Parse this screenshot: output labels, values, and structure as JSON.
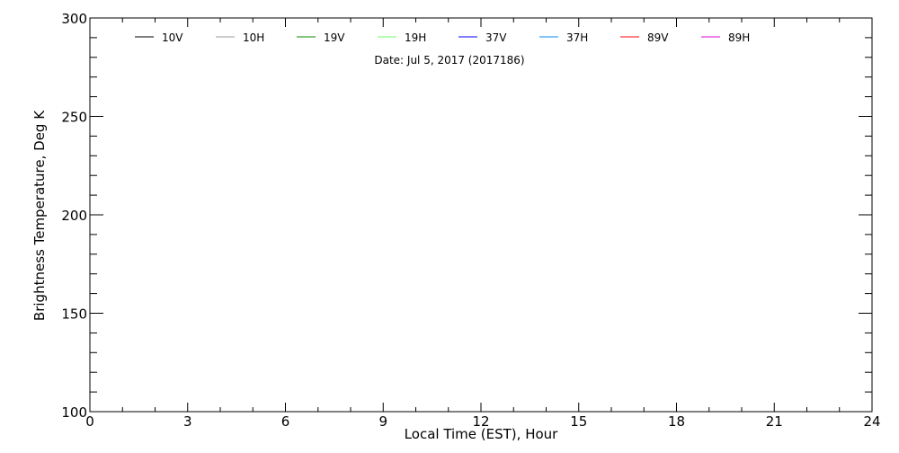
{
  "chart_data": {
    "type": "line",
    "subtitle": "Date: Jul  5, 2017 (2017186)",
    "xlabel": "Local Time (EST), Hour",
    "ylabel": "Brightness Temperature, Deg K",
    "xlim": [
      0,
      24
    ],
    "ylim": [
      100,
      300
    ],
    "x_ticks": [
      "0",
      "3",
      "6",
      "9",
      "12",
      "15",
      "18",
      "21",
      "24"
    ],
    "y_ticks": [
      "100",
      "150",
      "200",
      "250",
      "300"
    ],
    "grid": false,
    "legend_position": "top",
    "series": [
      {
        "name": "10V",
        "color": "#000000",
        "x": [],
        "y": []
      },
      {
        "name": "10H",
        "color": "#999999",
        "x": [],
        "y": []
      },
      {
        "name": "19V",
        "color": "#008800",
        "x": [],
        "y": []
      },
      {
        "name": "19H",
        "color": "#66ff66",
        "x": [],
        "y": []
      },
      {
        "name": "37V",
        "color": "#0000ff",
        "x": [],
        "y": []
      },
      {
        "name": "37H",
        "color": "#0088ff",
        "x": [],
        "y": []
      },
      {
        "name": "89V",
        "color": "#ff0000",
        "x": [],
        "y": []
      },
      {
        "name": "89H",
        "color": "#dd00dd",
        "x": [],
        "y": []
      }
    ]
  }
}
